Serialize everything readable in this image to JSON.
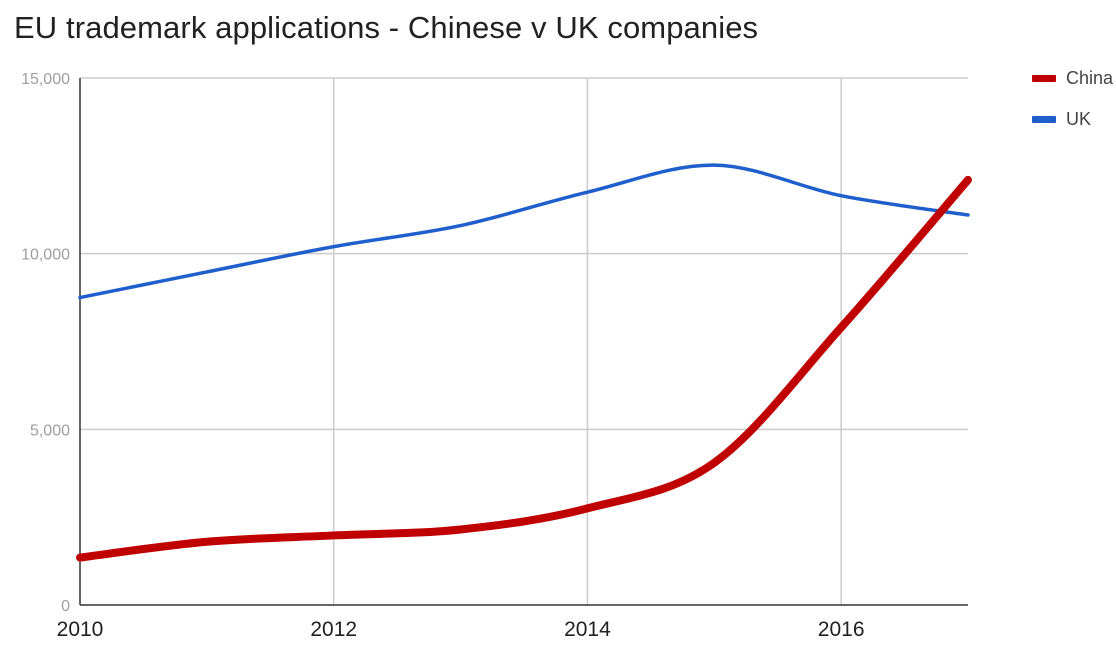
{
  "title": "EU trademark applications - Chinese v UK companies",
  "chart_data": {
    "type": "line",
    "title": "EU trademark applications - Chinese v UK companies",
    "xlabel": "",
    "ylabel": "",
    "x": [
      2010,
      2011,
      2012,
      2013,
      2014,
      2015,
      2016,
      2017
    ],
    "x_ticks": [
      "2010",
      "2012",
      "2014",
      "2016"
    ],
    "xlim": [
      2010,
      2017
    ],
    "y_ticks": [
      "0",
      "5,000",
      "10,000",
      "15,000"
    ],
    "ylim": [
      0,
      15000
    ],
    "grid": true,
    "legend_position": "right",
    "series": [
      {
        "name": "China",
        "color": "#c00000",
        "values": [
          1350,
          1800,
          1980,
          2150,
          2750,
          4050,
          7900,
          12100
        ]
      },
      {
        "name": "UK",
        "color": "#1f5fcc",
        "values": [
          8750,
          9480,
          10200,
          10800,
          11750,
          12520,
          11650,
          11100
        ]
      }
    ]
  }
}
